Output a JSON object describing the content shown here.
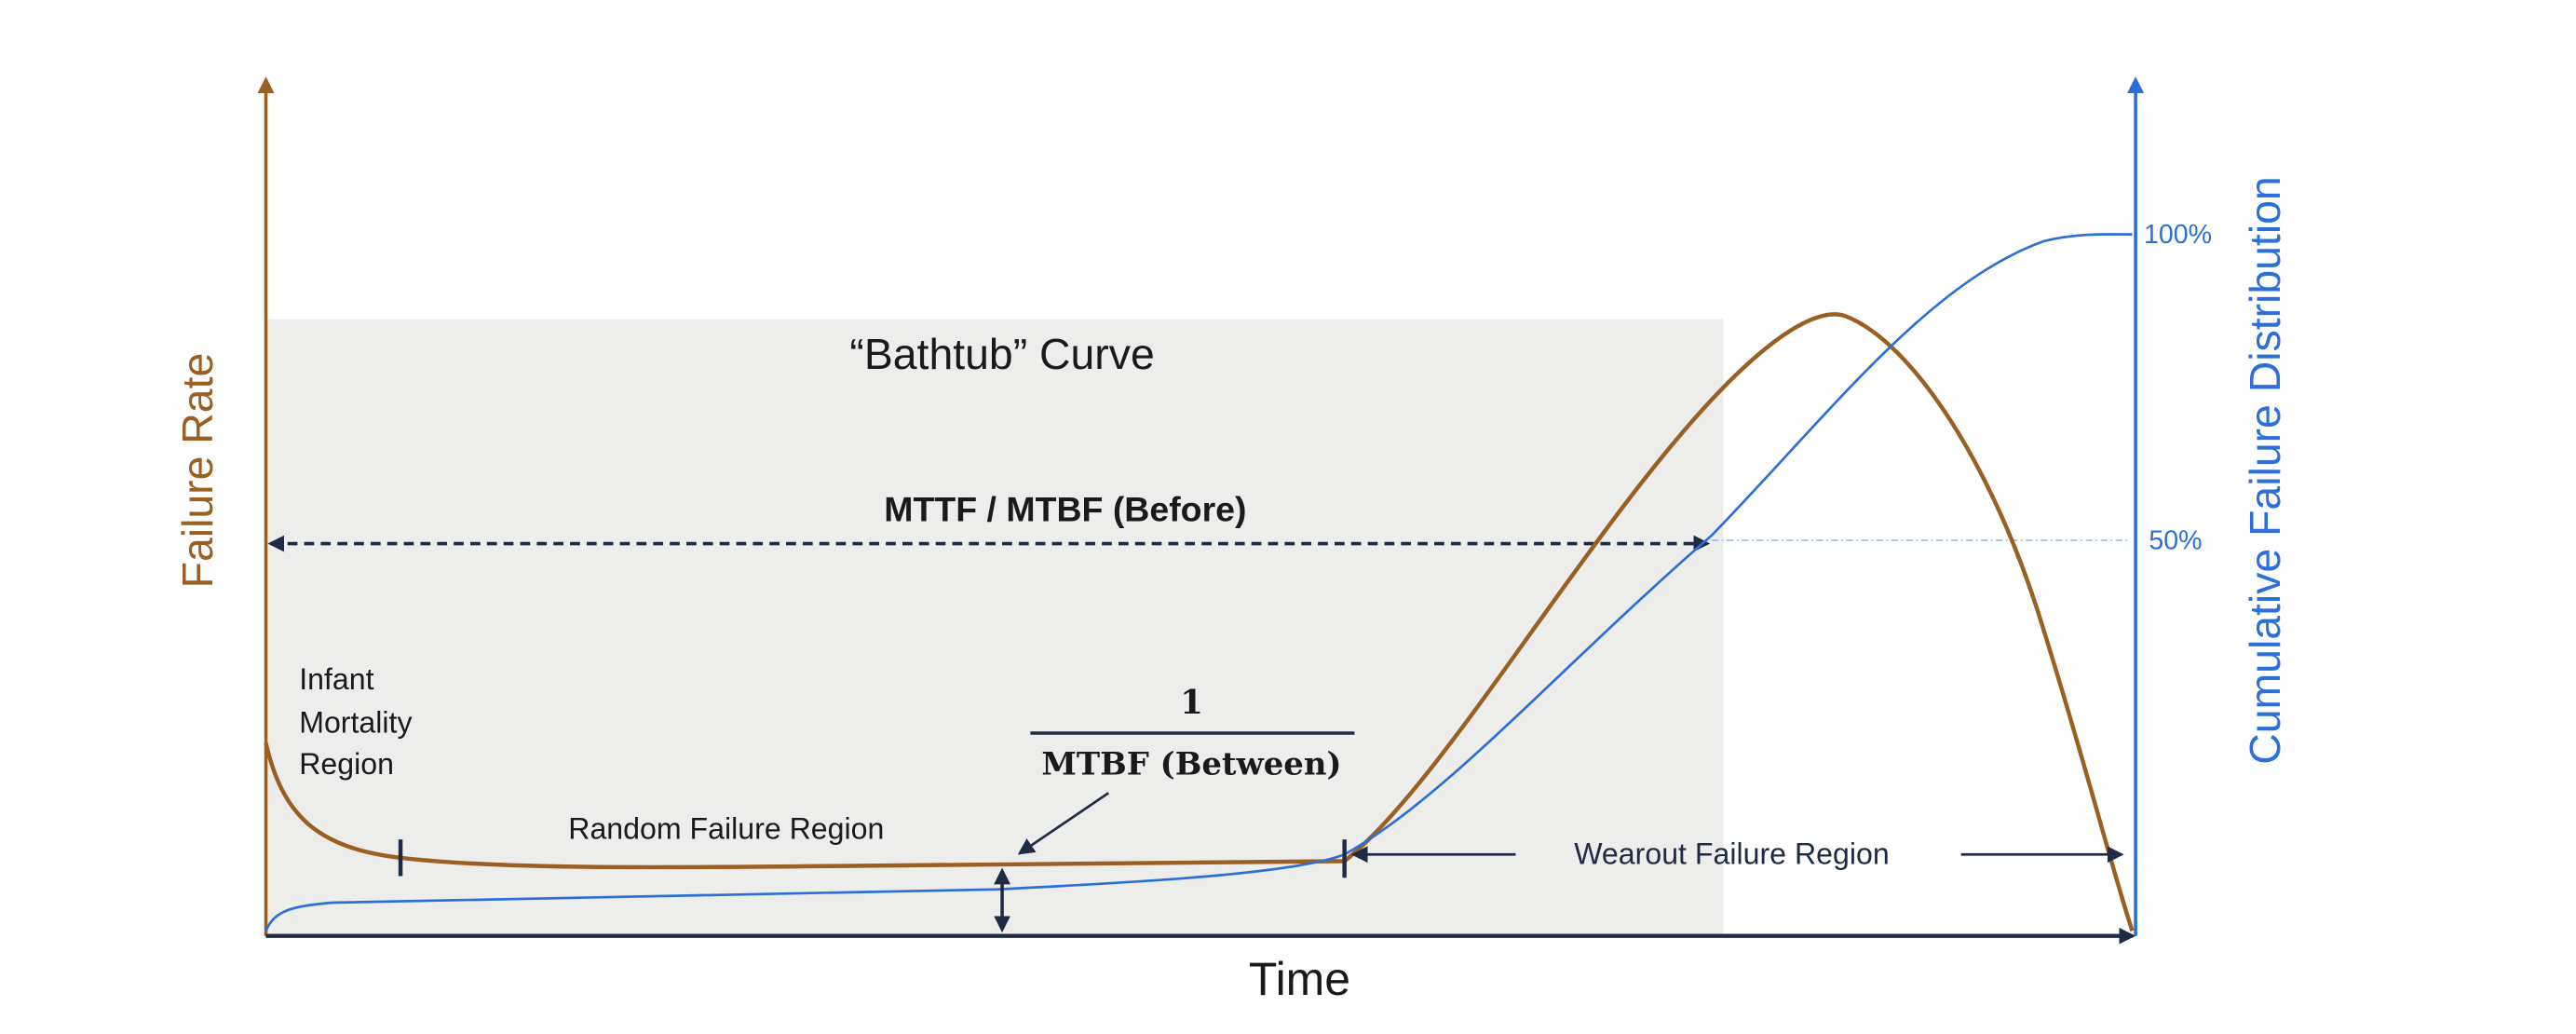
{
  "diagram": {
    "title": "“Bathtub” Curve",
    "y_axis_label": "Failure Rate",
    "y2_axis_label": "Cumulative Failure Distribution",
    "x_axis_label": "Time",
    "mttf_label": "MTTF / MTBF (Before)",
    "y2_tick_high": "100%",
    "y2_tick_mid": "50%",
    "infant_region": [
      "Infant",
      "Mortality",
      "Region"
    ],
    "random_region": "Random Failure Region",
    "wearout_region": "Wearout Failure Region",
    "fraction_numerator": "1",
    "fraction_denominator": "MTBF (Between)"
  }
}
